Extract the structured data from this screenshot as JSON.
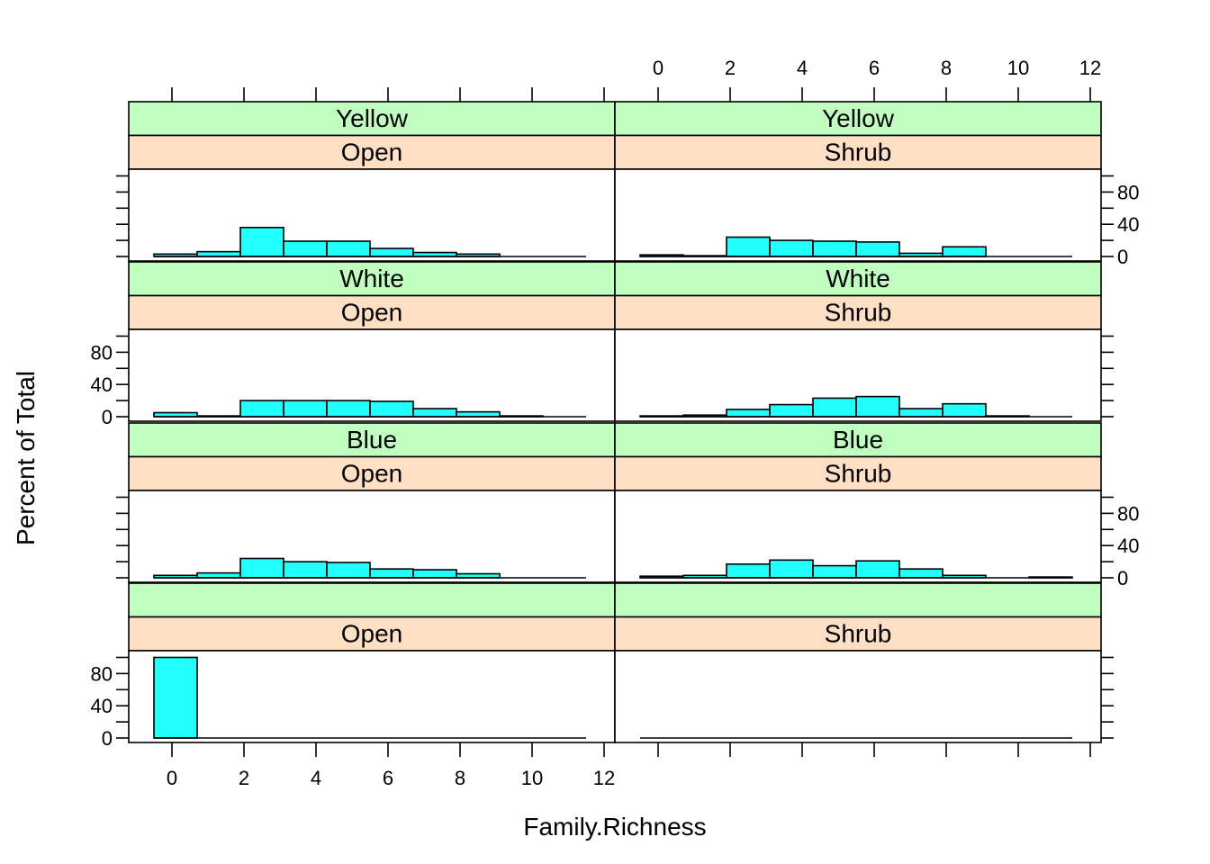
{
  "chart_data": {
    "type": "histogram",
    "layout": "trellis 2 columns x 4 rows",
    "xlabel": "Family.Richness",
    "ylabel": "Percent of Total",
    "xlim": [
      -1.2,
      12.3
    ],
    "ylim": [
      0,
      105
    ],
    "x_ticks": [
      0,
      2,
      4,
      6,
      8,
      10,
      12
    ],
    "y_ticks": [
      0,
      40,
      80
    ],
    "bin_edges": [
      -0.5,
      0.7,
      1.9,
      3.1,
      4.3,
      5.5,
      6.7,
      7.9,
      9.1,
      10.3,
      11.5
    ],
    "strip_colors": {
      "top": "#c1ffc1",
      "bottom": "#ffe0c4"
    },
    "bar_color": "#21ffff",
    "panels": [
      {
        "row": 0,
        "col": 0,
        "strip_top": "Yellow",
        "strip_bottom": "Open",
        "values": [
          3,
          6,
          36,
          19,
          19,
          10,
          5,
          3,
          0,
          0
        ]
      },
      {
        "row": 0,
        "col": 1,
        "strip_top": "Yellow",
        "strip_bottom": "Shrub",
        "values": [
          2,
          1,
          24,
          20,
          19,
          18,
          4,
          12,
          0,
          0
        ]
      },
      {
        "row": 1,
        "col": 0,
        "strip_top": "White",
        "strip_bottom": "Open",
        "values": [
          5,
          1,
          20,
          20,
          20,
          19,
          10,
          6,
          1,
          0
        ]
      },
      {
        "row": 1,
        "col": 1,
        "strip_top": "White",
        "strip_bottom": "Shrub",
        "values": [
          1,
          2,
          9,
          15,
          23,
          25,
          10,
          16,
          1,
          0
        ]
      },
      {
        "row": 2,
        "col": 0,
        "strip_top": "Blue",
        "strip_bottom": "Open",
        "values": [
          3,
          6,
          24,
          20,
          19,
          11,
          10,
          5,
          0,
          0
        ]
      },
      {
        "row": 2,
        "col": 1,
        "strip_top": "Blue",
        "strip_bottom": "Shrub",
        "values": [
          2,
          3,
          17,
          22,
          15,
          21,
          11,
          3,
          0,
          1
        ]
      },
      {
        "row": 3,
        "col": 0,
        "strip_top": "",
        "strip_bottom": "Open",
        "values": [
          100,
          0,
          0,
          0,
          0,
          0,
          0,
          0,
          0,
          0
        ]
      },
      {
        "row": 3,
        "col": 1,
        "strip_top": "",
        "strip_bottom": "Shrub",
        "values": [
          0,
          0,
          0,
          0,
          0,
          0,
          0,
          0,
          0,
          0
        ]
      }
    ]
  }
}
